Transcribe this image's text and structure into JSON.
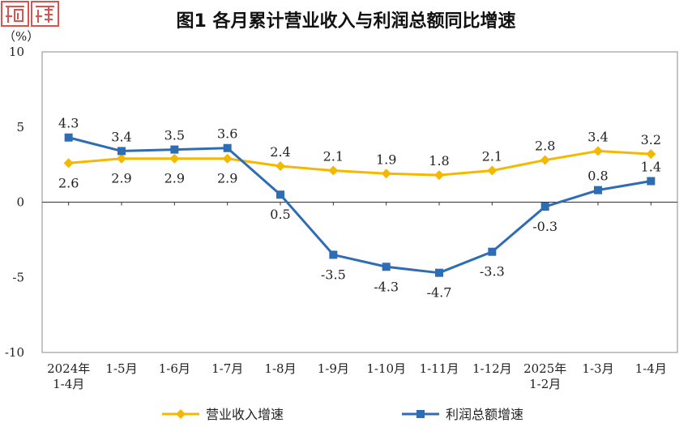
{
  "title": "图1  各月累计营业收入与利润总额同比增速",
  "chart_data": {
    "type": "line",
    "title": "图1  各月累计营业收入与利润总额同比增速",
    "ylabel": "（%）",
    "ylim": [
      -10,
      10
    ],
    "yticks": [
      "10",
      "5",
      "0",
      "-5",
      "-10"
    ],
    "categories": [
      [
        "2024年",
        "1-4月"
      ],
      [
        "1-5月"
      ],
      [
        "1-6月"
      ],
      [
        "1-7月"
      ],
      [
        "1-8月"
      ],
      [
        "1-9月"
      ],
      [
        "1-10月"
      ],
      [
        "1-11月"
      ],
      [
        "1-12月"
      ],
      [
        "2025年",
        "1-2月"
      ],
      [
        "1-3月"
      ],
      [
        "1-4月"
      ]
    ],
    "series": [
      {
        "name": "营业收入增速",
        "color": "#f5b800",
        "marker": "diamond",
        "values": [
          2.6,
          2.9,
          2.9,
          2.9,
          2.4,
          2.1,
          1.9,
          1.8,
          2.1,
          2.8,
          3.4,
          3.2
        ],
        "labels": [
          "2.6",
          "2.9",
          "2.9",
          "2.9",
          "2.4",
          "2.1",
          "1.9",
          "1.8",
          "2.1",
          "2.8",
          "3.4",
          "3.2"
        ]
      },
      {
        "name": "利润总额增速",
        "color": "#2e6db4",
        "marker": "square",
        "values": [
          4.3,
          3.4,
          3.5,
          3.6,
          0.5,
          -3.5,
          -4.3,
          -4.7,
          -3.3,
          -0.3,
          0.8,
          1.4
        ],
        "labels": [
          "4.3",
          "3.4",
          "3.5",
          "3.6",
          "0.5",
          "-3.5",
          "-4.3",
          "-4.7",
          "-3.3",
          "-0.3",
          "0.8",
          "1.4"
        ]
      }
    ],
    "legend_position": "bottom"
  },
  "seal_color": "#d9534f"
}
